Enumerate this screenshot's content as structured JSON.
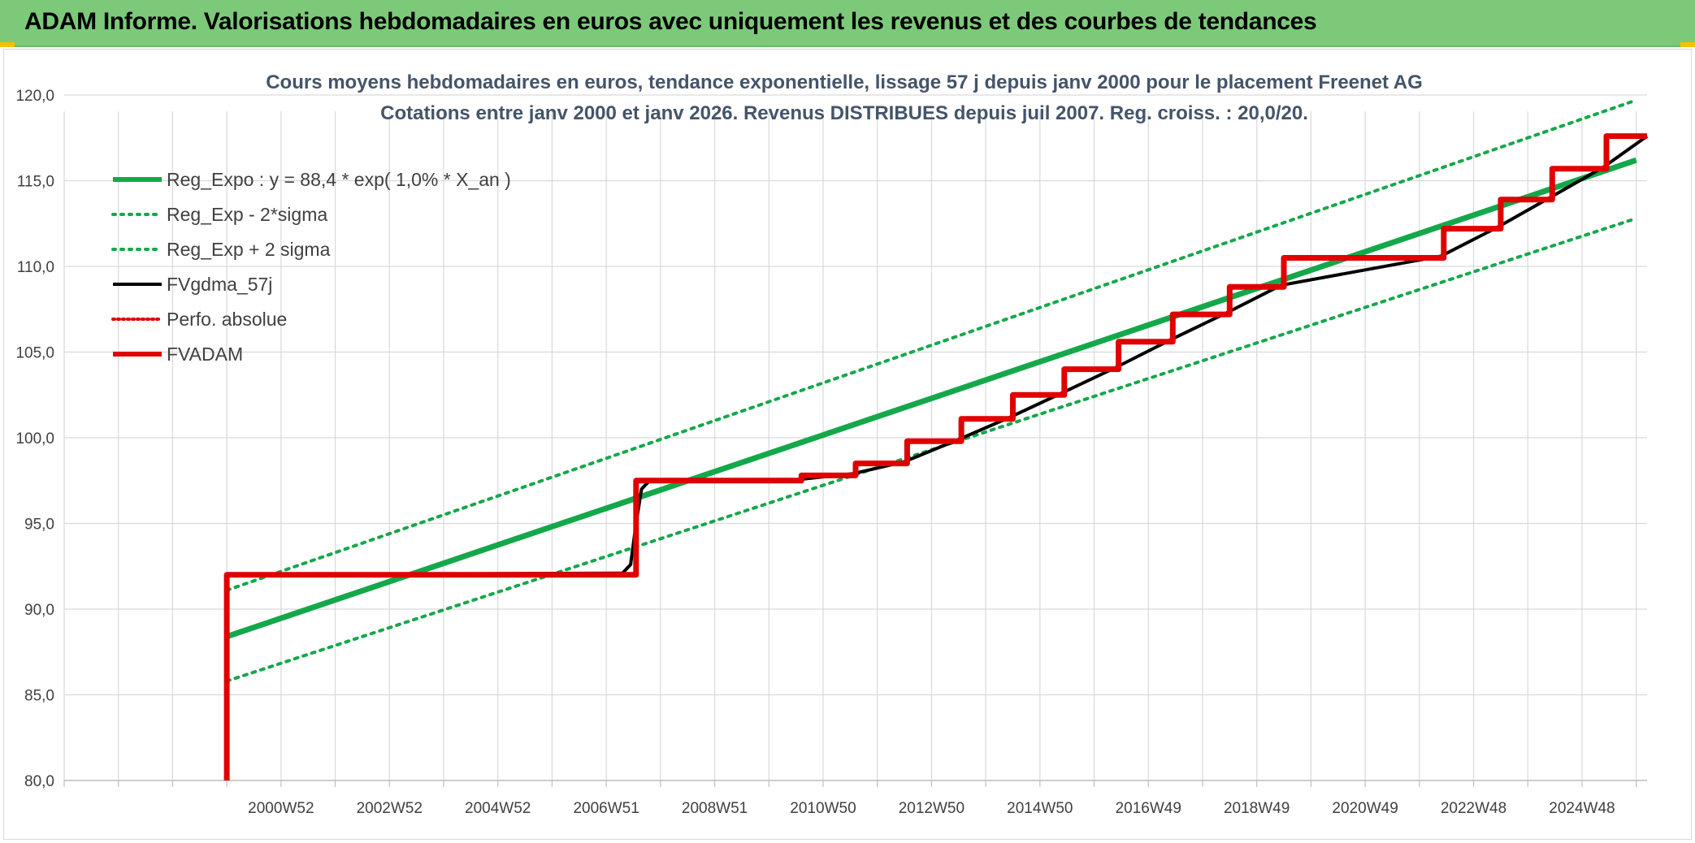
{
  "banner": {
    "title": "ADAM Informe. Valorisations hebdomadaires en euros avec uniquement les revenus et des courbes de tendances"
  },
  "colors": {
    "banner_bg": "#7dc97a",
    "trend_green": "#14a84a",
    "adam_red": "#e00000",
    "fv_black": "#000000",
    "grid": "#d9d9d9",
    "axis_text": "#404040",
    "title_text": "#44546a"
  },
  "chart_data": {
    "type": "line",
    "title": "Cours moyens hebdomadaires en euros, tendance exponentielle, lissage 57 j depuis janv 2000 pour le placement Freenet AG",
    "subtitle": "Cotations entre janv 2000 et janv 2026. Revenus DISTRIBUES depuis juil 2007. Reg. croiss. : 20,0/20.",
    "xlabel": "",
    "ylabel": "",
    "ylim": [
      80,
      120
    ],
    "yticks": [
      "80,0",
      "85,0",
      "90,0",
      "95,0",
      "100,0",
      "105,0",
      "110,0",
      "115,0",
      "120,0"
    ],
    "ytick_values": [
      80,
      85,
      90,
      95,
      100,
      105,
      110,
      115,
      120
    ],
    "xlim": [
      1997,
      2026.2
    ],
    "xtick_labels": [
      "2000W52",
      "2002W52",
      "2004W52",
      "2006W51",
      "2008W51",
      "2010W50",
      "2012W50",
      "2014W50",
      "2016W49",
      "2018W49",
      "2020W49",
      "2022W48",
      "2024W48"
    ],
    "xtick_years": [
      2001,
      2003,
      2005,
      2007,
      2009,
      2011,
      2013,
      2015,
      2017,
      2019,
      2021,
      2023,
      2025
    ],
    "grid": true,
    "legend_position": "top-left",
    "legend": [
      {
        "label": "Reg_Expo : y = 88,4 * exp( 1,0% *  X_an )",
        "color": "#14a84a",
        "style": "solid-thick"
      },
      {
        "label": "Reg_Exp - 2*sigma",
        "color": "#14a84a",
        "style": "dotted"
      },
      {
        "label": "Reg_Exp + 2 sigma",
        "color": "#14a84a",
        "style": "dotted"
      },
      {
        "label": "FVgdma_57j",
        "color": "#000000",
        "style": "solid"
      },
      {
        "label": "Perfo. absolue",
        "color": "#e00000",
        "style": "dotted"
      },
      {
        "label": "FVADAM",
        "color": "#e00000",
        "style": "solid-thick"
      }
    ],
    "series": [
      {
        "name": "Reg_Expo : y = 88,4 * exp( 1,0% *  X_an )",
        "x": [
          2000.0,
          2026.0
        ],
        "values": [
          88.4,
          116.2
        ]
      },
      {
        "name": "Reg_Exp - 2*sigma",
        "x": [
          2000.0,
          2026.0
        ],
        "values": [
          85.8,
          112.8
        ]
      },
      {
        "name": "Reg_Exp + 2 sigma",
        "x": [
          2000.0,
          2026.0
        ],
        "values": [
          91.1,
          119.7
        ]
      },
      {
        "name": "FVADAM",
        "x": [
          2000.0,
          2000.0,
          2007.55,
          2007.55,
          2010.6,
          2010.6,
          2011.6,
          2011.6,
          2012.55,
          2012.55,
          2013.55,
          2013.55,
          2014.5,
          2014.5,
          2015.45,
          2015.45,
          2016.45,
          2016.45,
          2017.45,
          2017.45,
          2018.5,
          2018.5,
          2019.5,
          2019.5,
          2022.45,
          2022.45,
          2023.5,
          2023.5,
          2024.45,
          2024.45,
          2025.45,
          2025.45,
          2026.2
        ],
        "values": [
          80.0,
          92.0,
          92.0,
          97.5,
          97.5,
          97.8,
          97.8,
          98.5,
          98.5,
          99.8,
          99.8,
          101.1,
          101.1,
          102.5,
          102.5,
          104.0,
          104.0,
          105.6,
          105.6,
          107.2,
          107.2,
          108.8,
          108.8,
          110.5,
          110.5,
          112.2,
          112.2,
          113.9,
          113.9,
          115.7,
          115.7,
          117.6,
          117.6
        ]
      },
      {
        "name": "FVgdma_57j",
        "x": [
          2000.0,
          2007.3,
          2007.45,
          2007.55,
          2007.65,
          2007.8,
          2010.5,
          2011.55,
          2012.5,
          2013.5,
          2014.45,
          2015.4,
          2016.4,
          2017.4,
          2018.45,
          2019.45,
          2022.4,
          2023.45,
          2024.4,
          2025.4,
          2026.2
        ],
        "values": [
          92.0,
          92.1,
          92.6,
          95.0,
          97.0,
          97.5,
          97.55,
          97.9,
          98.6,
          99.9,
          101.2,
          102.6,
          104.1,
          105.7,
          107.3,
          108.9,
          110.6,
          112.3,
          114.0,
          115.8,
          117.6
        ]
      },
      {
        "name": "Perfo. absolue",
        "x": [],
        "values": []
      }
    ]
  }
}
